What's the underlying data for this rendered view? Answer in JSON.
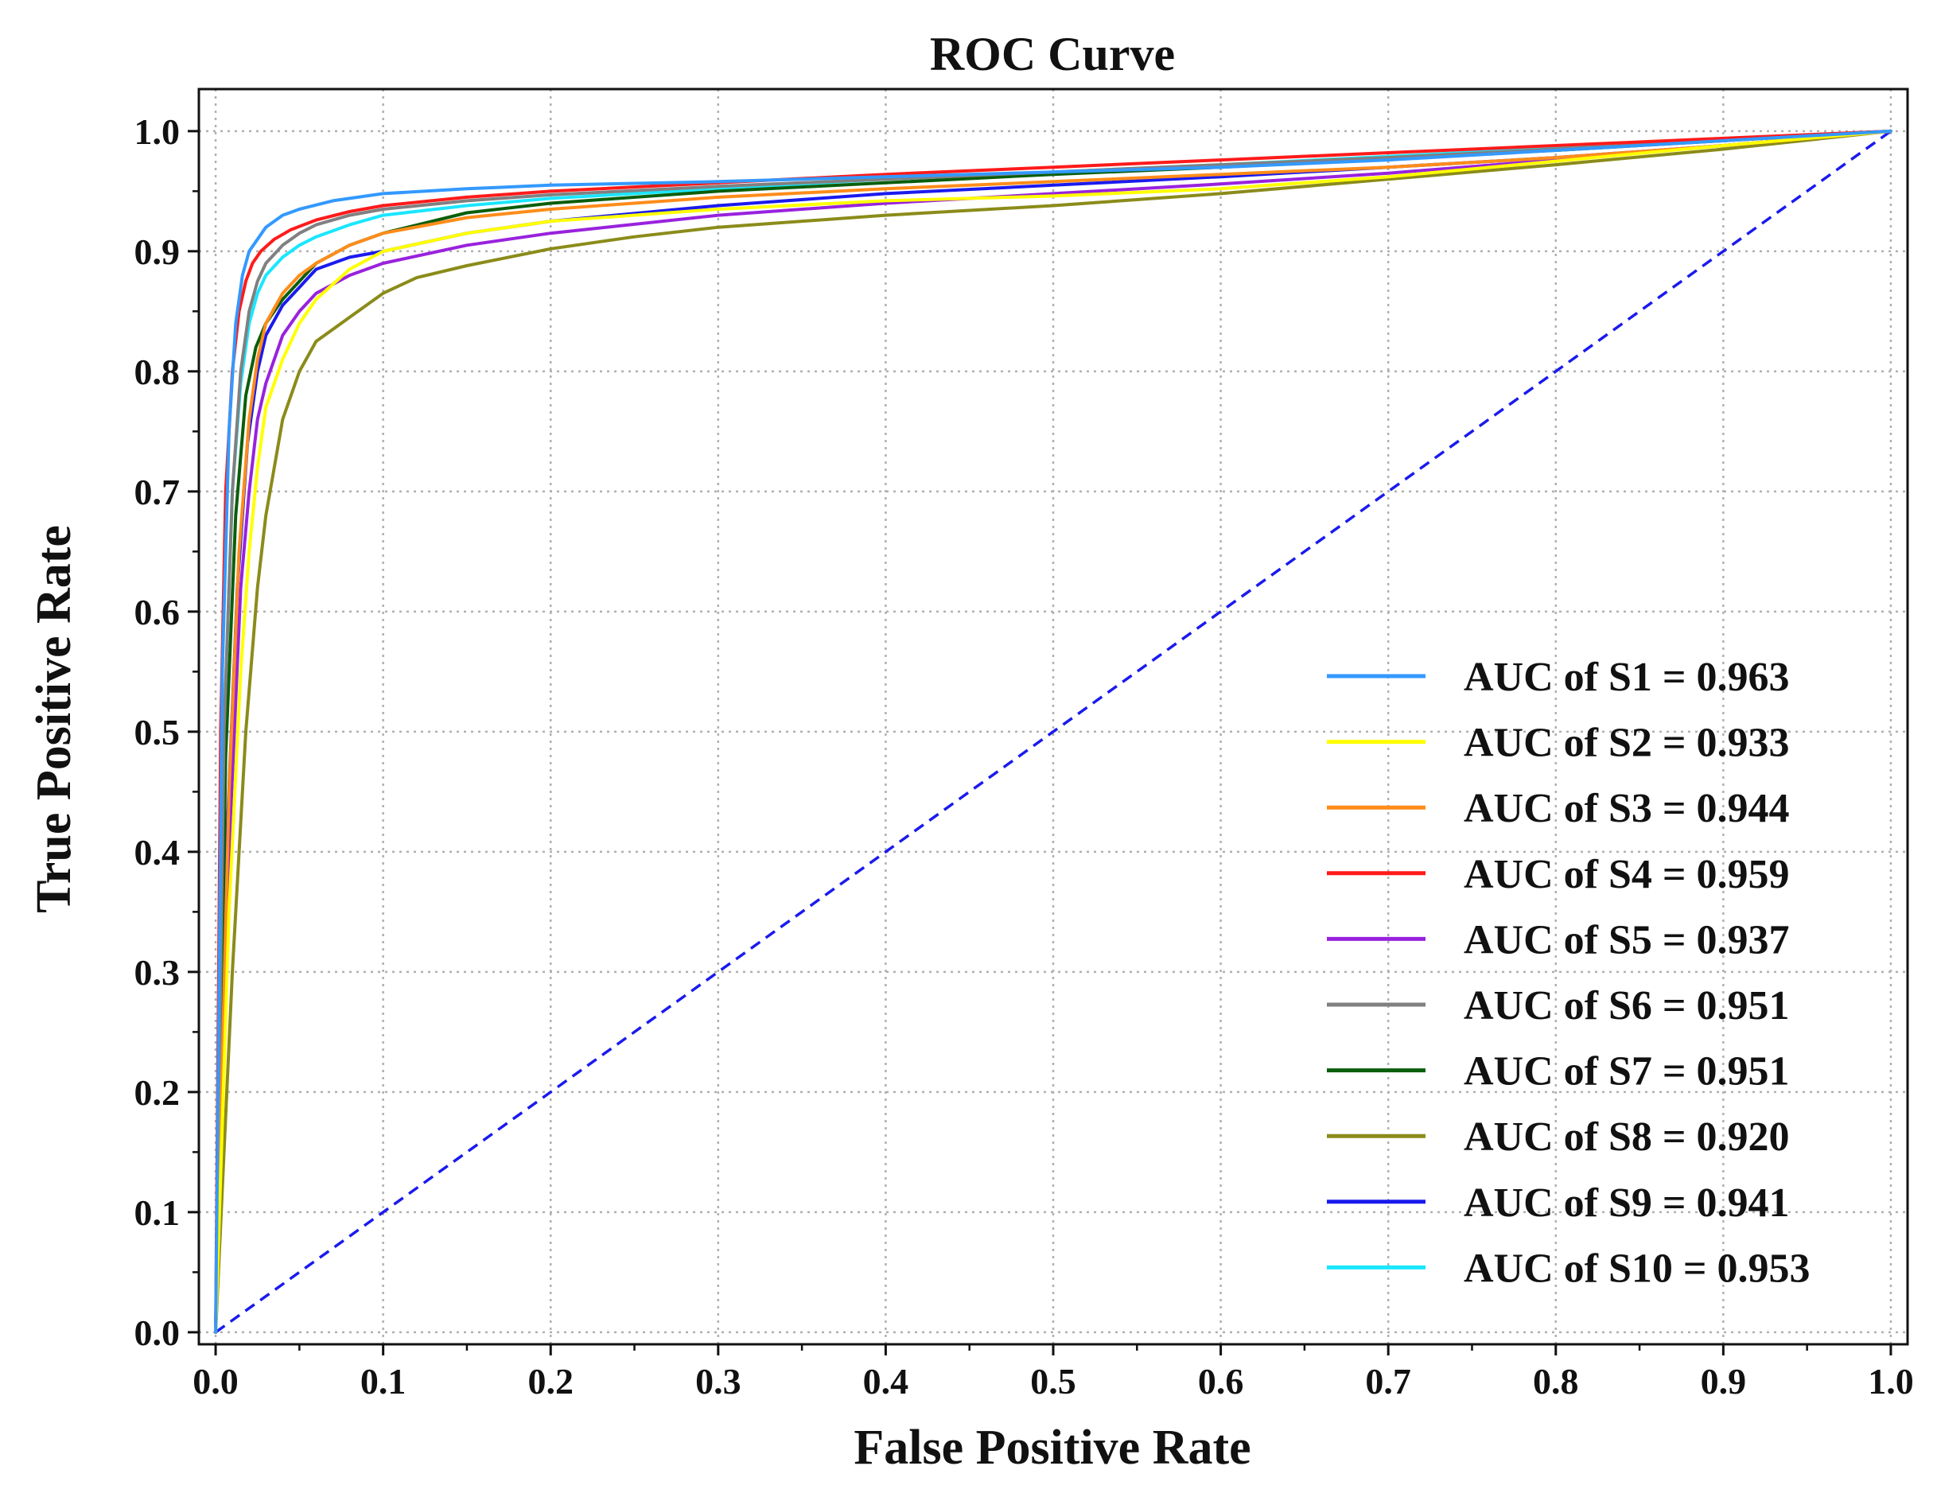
{
  "chart_data": {
    "type": "line",
    "title": "ROC Curve",
    "xlabel": "False Positive Rate",
    "ylabel": "True Positive Rate",
    "xlim": [
      -0.01,
      1.01
    ],
    "ylim": [
      -0.01,
      1.035
    ],
    "grid": true,
    "legend_position": "lower-right",
    "x_ticks": [
      0.0,
      0.1,
      0.2,
      0.3,
      0.4,
      0.5,
      0.6,
      0.7,
      0.8,
      0.9,
      1.0
    ],
    "y_ticks": [
      0.0,
      0.1,
      0.2,
      0.3,
      0.4,
      0.5,
      0.6,
      0.7,
      0.8,
      0.9,
      1.0
    ],
    "x_tick_labels": [
      "0.0",
      "0.1",
      "0.2",
      "0.3",
      "0.4",
      "0.5",
      "0.6",
      "0.7",
      "0.8",
      "0.9",
      "1.0"
    ],
    "y_tick_labels": [
      "0.0",
      "0.1",
      "0.2",
      "0.3",
      "0.4",
      "0.5",
      "0.6",
      "0.7",
      "0.8",
      "0.9",
      "1.0"
    ],
    "series": [
      {
        "name": "AUC of S1 = 0.963",
        "color": "#3399ff",
        "x": [
          0,
          0.004,
          0.008,
          0.012,
          0.016,
          0.02,
          0.025,
          0.03,
          0.04,
          0.05,
          0.07,
          0.1,
          0.15,
          0.2,
          0.3,
          0.4,
          0.5,
          0.6,
          0.7,
          0.8,
          0.9,
          1.0
        ],
        "y": [
          0,
          0.55,
          0.75,
          0.84,
          0.88,
          0.9,
          0.91,
          0.92,
          0.93,
          0.935,
          0.942,
          0.948,
          0.952,
          0.955,
          0.958,
          0.962,
          0.966,
          0.97,
          0.976,
          0.984,
          0.992,
          1.0
        ]
      },
      {
        "name": "AUC of S2 = 0.933",
        "color": "#ffff00",
        "x": [
          0,
          0.008,
          0.015,
          0.02,
          0.025,
          0.03,
          0.04,
          0.05,
          0.06,
          0.08,
          0.1,
          0.15,
          0.2,
          0.3,
          0.4,
          0.5,
          0.6,
          0.7,
          0.8,
          0.9,
          1.0
        ],
        "y": [
          0,
          0.35,
          0.55,
          0.65,
          0.72,
          0.77,
          0.81,
          0.84,
          0.86,
          0.885,
          0.9,
          0.915,
          0.925,
          0.935,
          0.942,
          0.946,
          0.952,
          0.962,
          0.975,
          0.988,
          1.0
        ]
      },
      {
        "name": "AUC of S3 = 0.944",
        "color": "#ff8c1a",
        "x": [
          0,
          0.008,
          0.014,
          0.02,
          0.025,
          0.03,
          0.04,
          0.05,
          0.06,
          0.08,
          0.1,
          0.15,
          0.2,
          0.3,
          0.4,
          0.5,
          0.6,
          0.7,
          0.8,
          0.9,
          1.0
        ],
        "y": [
          0,
          0.45,
          0.65,
          0.76,
          0.81,
          0.84,
          0.865,
          0.88,
          0.89,
          0.905,
          0.915,
          0.928,
          0.935,
          0.945,
          0.952,
          0.958,
          0.964,
          0.97,
          0.978,
          0.988,
          1.0
        ]
      },
      {
        "name": "AUC of S4 = 0.959",
        "color": "#ff1a1a",
        "x": [
          0,
          0.003,
          0.006,
          0.01,
          0.014,
          0.018,
          0.022,
          0.027,
          0.035,
          0.045,
          0.06,
          0.08,
          0.1,
          0.15,
          0.2,
          0.3,
          0.4,
          0.5,
          0.6,
          0.7,
          0.8,
          0.9,
          1.0
        ],
        "y": [
          0,
          0.5,
          0.7,
          0.8,
          0.85,
          0.875,
          0.89,
          0.9,
          0.91,
          0.918,
          0.926,
          0.933,
          0.938,
          0.945,
          0.95,
          0.957,
          0.964,
          0.97,
          0.976,
          0.982,
          0.988,
          0.994,
          1.0
        ]
      },
      {
        "name": "AUC of S5 = 0.937",
        "color": "#9922dd",
        "x": [
          0,
          0.008,
          0.015,
          0.02,
          0.025,
          0.03,
          0.035,
          0.04,
          0.05,
          0.06,
          0.08,
          0.1,
          0.15,
          0.2,
          0.3,
          0.4,
          0.5,
          0.6,
          0.7,
          0.8,
          0.9,
          1.0
        ],
        "y": [
          0,
          0.4,
          0.62,
          0.7,
          0.76,
          0.79,
          0.81,
          0.83,
          0.85,
          0.865,
          0.88,
          0.89,
          0.905,
          0.915,
          0.93,
          0.94,
          0.948,
          0.956,
          0.965,
          0.976,
          0.988,
          1.0
        ]
      },
      {
        "name": "AUC of S6 = 0.951",
        "color": "#808080",
        "x": [
          0,
          0.005,
          0.01,
          0.015,
          0.02,
          0.025,
          0.03,
          0.04,
          0.05,
          0.06,
          0.08,
          0.1,
          0.15,
          0.2,
          0.3,
          0.4,
          0.5,
          0.6,
          0.7,
          0.8,
          0.9,
          1.0
        ],
        "y": [
          0,
          0.5,
          0.7,
          0.8,
          0.85,
          0.875,
          0.89,
          0.905,
          0.915,
          0.922,
          0.93,
          0.935,
          0.942,
          0.947,
          0.954,
          0.96,
          0.966,
          0.972,
          0.978,
          0.985,
          0.992,
          1.0
        ]
      },
      {
        "name": "AUC of S7 = 0.951",
        "color": "#0b5e0b",
        "x": [
          0,
          0.006,
          0.012,
          0.018,
          0.024,
          0.03,
          0.04,
          0.05,
          0.06,
          0.08,
          0.1,
          0.15,
          0.2,
          0.3,
          0.4,
          0.5,
          0.6,
          0.7,
          0.8,
          0.9,
          1.0
        ],
        "y": [
          0,
          0.48,
          0.68,
          0.78,
          0.82,
          0.84,
          0.86,
          0.875,
          0.89,
          0.905,
          0.915,
          0.932,
          0.94,
          0.95,
          0.957,
          0.964,
          0.97,
          0.977,
          0.984,
          0.992,
          1.0
        ]
      },
      {
        "name": "AUC of S8 = 0.920",
        "color": "#8b8b1a",
        "x": [
          0,
          0.01,
          0.018,
          0.025,
          0.03,
          0.035,
          0.04,
          0.05,
          0.06,
          0.07,
          0.08,
          0.1,
          0.12,
          0.15,
          0.2,
          0.25,
          0.3,
          0.4,
          0.5,
          0.6,
          0.7,
          0.8,
          0.9,
          1.0
        ],
        "y": [
          0,
          0.3,
          0.5,
          0.62,
          0.68,
          0.72,
          0.76,
          0.8,
          0.825,
          0.835,
          0.845,
          0.865,
          0.878,
          0.888,
          0.902,
          0.912,
          0.92,
          0.93,
          0.938,
          0.948,
          0.96,
          0.972,
          0.985,
          1.0
        ]
      },
      {
        "name": "AUC of S9 = 0.941",
        "color": "#1a1aee",
        "x": [
          0,
          0.007,
          0.013,
          0.019,
          0.025,
          0.03,
          0.04,
          0.05,
          0.06,
          0.08,
          0.1,
          0.15,
          0.2,
          0.3,
          0.4,
          0.5,
          0.6,
          0.7,
          0.8,
          0.9,
          1.0
        ],
        "y": [
          0,
          0.42,
          0.62,
          0.74,
          0.8,
          0.83,
          0.855,
          0.87,
          0.885,
          0.895,
          0.9,
          0.915,
          0.925,
          0.938,
          0.948,
          0.955,
          0.962,
          0.97,
          0.978,
          0.988,
          1.0
        ]
      },
      {
        "name": "AUC of S10 = 0.953",
        "color": "#1ae6ff",
        "x": [
          0,
          0.005,
          0.01,
          0.015,
          0.02,
          0.025,
          0.03,
          0.04,
          0.05,
          0.06,
          0.08,
          0.1,
          0.15,
          0.2,
          0.3,
          0.4,
          0.5,
          0.6,
          0.7,
          0.8,
          0.9,
          1.0
        ],
        "y": [
          0,
          0.5,
          0.7,
          0.79,
          0.84,
          0.865,
          0.88,
          0.895,
          0.905,
          0.912,
          0.922,
          0.93,
          0.938,
          0.944,
          0.952,
          0.96,
          0.966,
          0.972,
          0.979,
          0.986,
          0.993,
          1.0
        ]
      }
    ],
    "reference_line": {
      "x": [
        0,
        1
      ],
      "y": [
        0,
        1
      ],
      "color": "#1a1aee",
      "style": "dashed"
    }
  }
}
